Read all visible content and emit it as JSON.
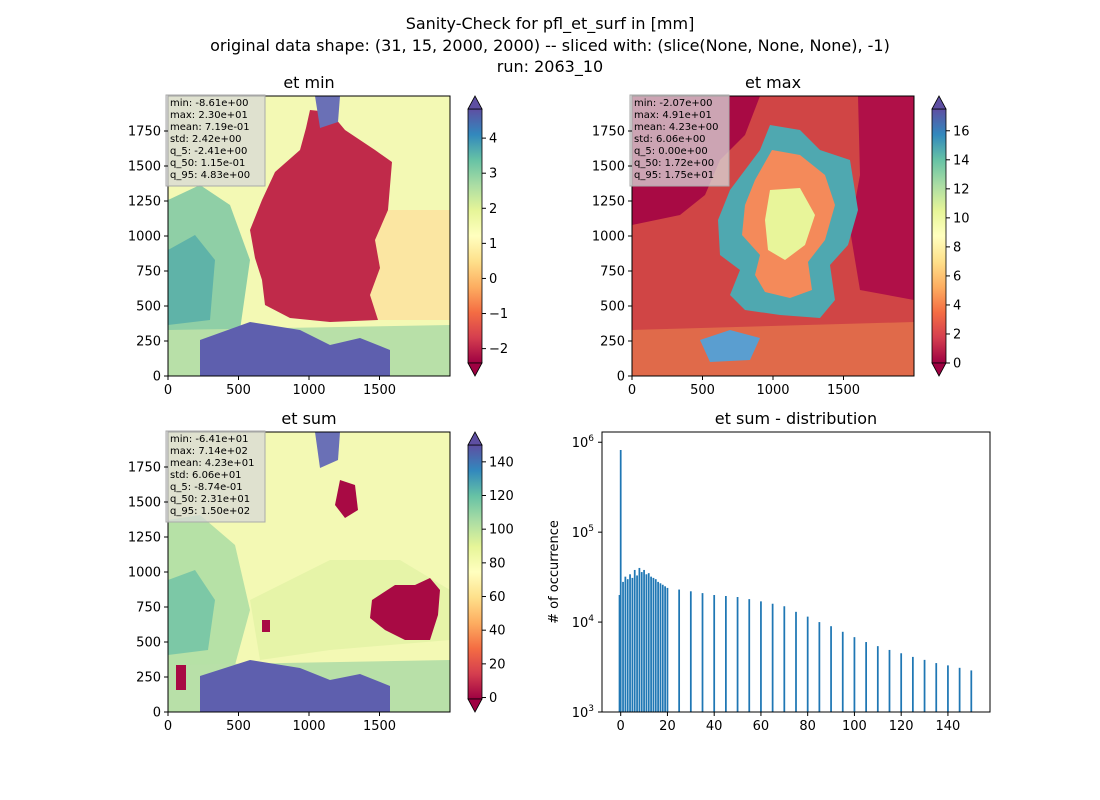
{
  "figure": {
    "title_lines": [
      "Sanity-Check for pfl_et_surf in [mm]",
      "original data shape: (31, 15, 2000, 2000) -- sliced with: (slice(None, None, None), -1)",
      "run: 2063_10"
    ]
  },
  "chart_data": [
    {
      "type": "heatmap",
      "title": "et min",
      "xlim": [
        0,
        2000
      ],
      "ylim": [
        0,
        2000
      ],
      "xticks": [
        0,
        500,
        1000,
        1500
      ],
      "yticks": [
        0,
        250,
        500,
        750,
        1000,
        1250,
        1500,
        1750
      ],
      "colorbar": {
        "cmap": "Spectral",
        "range": [
          -2.41,
          4.83
        ],
        "extend": "both",
        "ticks": [
          -2,
          -1,
          0,
          1,
          2,
          3,
          4
        ]
      },
      "stats": [
        "min: -8.61e+00",
        "max: 2.30e+01",
        "mean: 7.19e-01",
        "std: 2.42e+00",
        "q_5: -2.41e+00",
        "q_50: 1.15e-01",
        "q_95: 4.83e+00"
      ]
    },
    {
      "type": "heatmap",
      "title": "et max",
      "xlim": [
        0,
        2000
      ],
      "ylim": [
        0,
        2000
      ],
      "xticks": [
        0,
        500,
        1000,
        1500
      ],
      "yticks": [
        0,
        250,
        500,
        750,
        1000,
        1250,
        1500,
        1750
      ],
      "colorbar": {
        "cmap": "Spectral",
        "range": [
          0,
          17.5
        ],
        "extend": "both",
        "ticks": [
          0,
          2,
          4,
          6,
          8,
          10,
          12,
          14,
          16
        ]
      },
      "stats": [
        "min: -2.07e+00",
        "max: 4.91e+01",
        "mean: 4.23e+00",
        "std: 6.06e+00",
        "q_5: 0.00e+00",
        "q_50: 1.72e+00",
        "q_95: 1.75e+01"
      ]
    },
    {
      "type": "heatmap",
      "title": "et sum",
      "xlim": [
        0,
        2000
      ],
      "ylim": [
        0,
        2000
      ],
      "xticks": [
        0,
        500,
        1000,
        1500
      ],
      "yticks": [
        0,
        250,
        500,
        750,
        1000,
        1250,
        1500,
        1750
      ],
      "colorbar": {
        "cmap": "Spectral",
        "range": [
          -0.874,
          150
        ],
        "extend": "both",
        "ticks": [
          0,
          20,
          40,
          60,
          80,
          100,
          120,
          140
        ]
      },
      "stats": [
        "min: -6.41e+01",
        "max: 7.14e+02",
        "mean: 4.23e+01",
        "std: 6.06e+01",
        "q_5: -8.74e-01",
        "q_50: 2.31e+01",
        "q_95: 1.50e+02"
      ]
    },
    {
      "type": "bar",
      "title": "et sum - distribution",
      "ylabel": "# of occurrence",
      "xlim": [
        -8,
        158
      ],
      "xticks": [
        0,
        20,
        40,
        60,
        80,
        100,
        120,
        140
      ],
      "yscale": "log",
      "ylim": [
        1000,
        1300000
      ],
      "yticks": [
        1000,
        10000,
        100000,
        1000000
      ],
      "ytick_labels": [
        "10^3",
        "10^4",
        "10^5",
        "10^6"
      ],
      "bin_width": 0.75,
      "x": [
        -0.5,
        0,
        1,
        2,
        3,
        4,
        5,
        6,
        7,
        8,
        9,
        10,
        11,
        12,
        13,
        14,
        15,
        16,
        17,
        18,
        19,
        20,
        25,
        30,
        35,
        40,
        45,
        50,
        55,
        60,
        65,
        70,
        75,
        80,
        85,
        90,
        95,
        100,
        105,
        110,
        115,
        120,
        125,
        130,
        135,
        140,
        145,
        150
      ],
      "values": [
        20000,
        820000,
        28000,
        32000,
        30000,
        34000,
        31000,
        38000,
        33000,
        40000,
        36000,
        38000,
        34000,
        35000,
        32000,
        31000,
        30000,
        28000,
        27000,
        26000,
        25000,
        24000,
        23000,
        22000,
        21000,
        20000,
        19500,
        19000,
        18000,
        17000,
        16000,
        15000,
        13000,
        11500,
        10000,
        9000,
        7800,
        6800,
        6000,
        5400,
        4900,
        4500,
        4100,
        3800,
        3500,
        3300,
        3100,
        2900
      ],
      "color": "#1f77b4"
    }
  ]
}
